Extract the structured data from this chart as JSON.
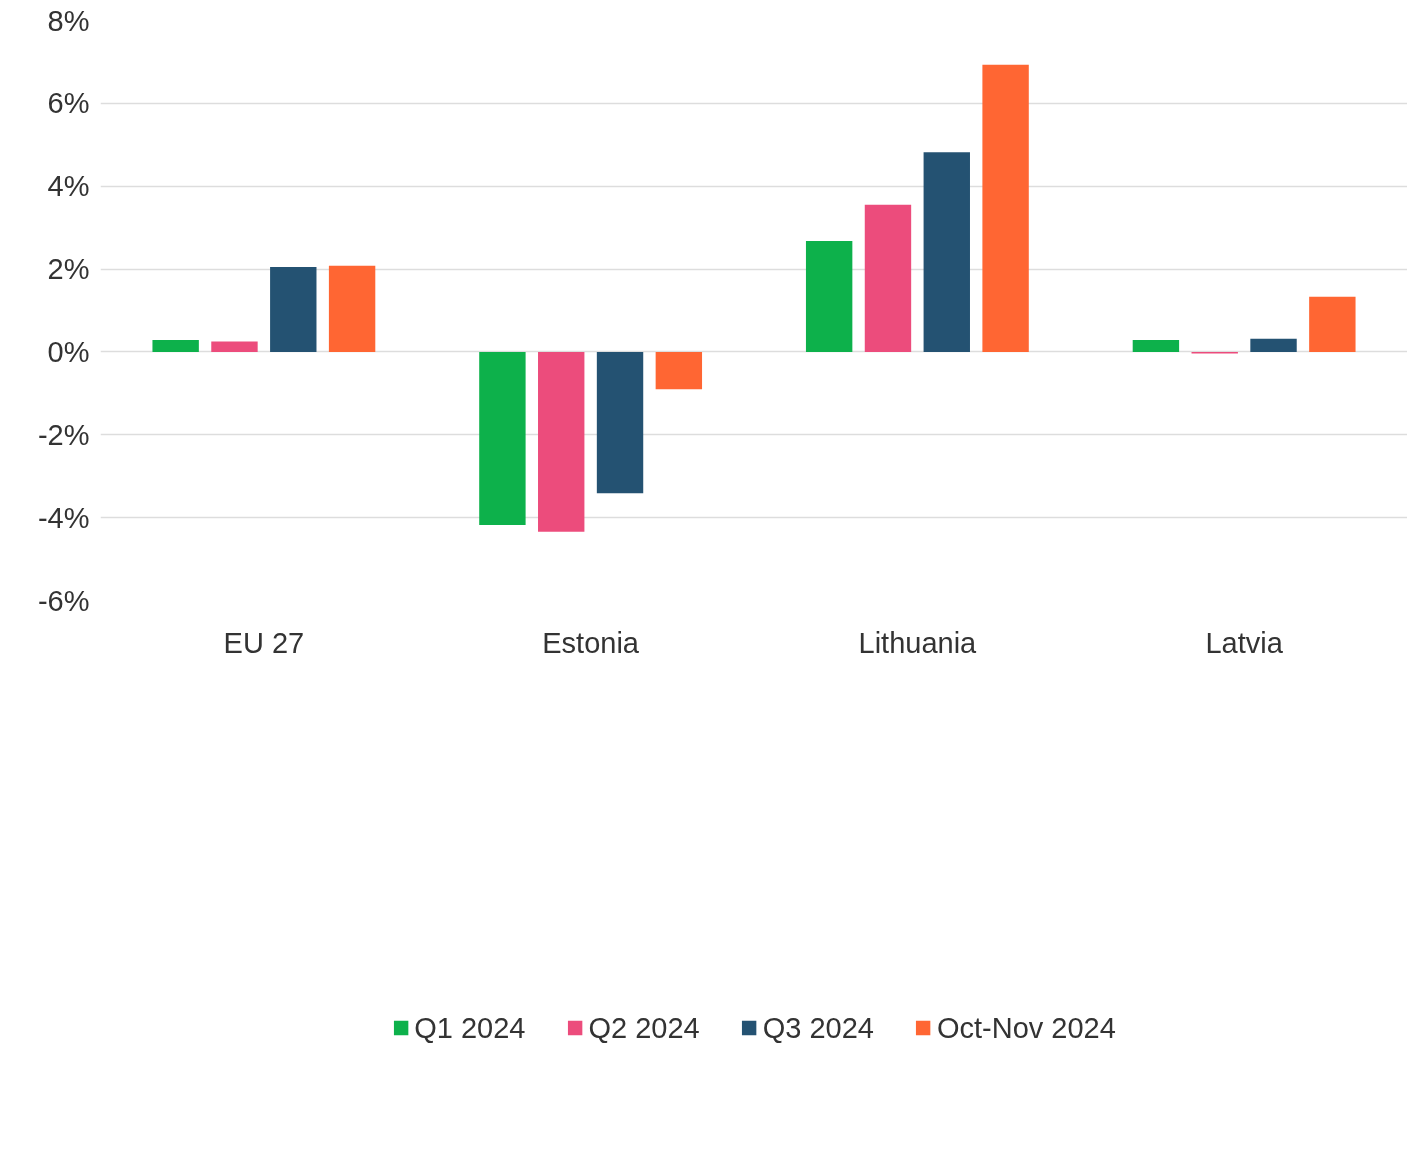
{
  "chart_data": {
    "type": "bar",
    "categories": [
      "EU 27",
      "Estonia",
      "Lithuania",
      "Latvia"
    ],
    "series": [
      {
        "name": "Q1 2024",
        "color": "#0db14b",
        "values": [
          0.29,
          -4.18,
          2.68,
          0.29
        ]
      },
      {
        "name": "Q2 2024",
        "color": "#ec4c7c",
        "values": [
          0.25,
          -4.34,
          3.55,
          -0.04
        ]
      },
      {
        "name": "Q3 2024",
        "color": "#245272",
        "values": [
          2.05,
          -3.41,
          4.82,
          0.32
        ]
      },
      {
        "name": "Oct-Nov 2024",
        "color": "#ff6633",
        "values": [
          2.08,
          -0.9,
          6.93,
          1.33
        ]
      }
    ],
    "ylim": [
      -6,
      8
    ],
    "yticks": [
      {
        "value": -6,
        "label": "-6%"
      },
      {
        "value": -4,
        "label": "-4%"
      },
      {
        "value": -2,
        "label": "-2%"
      },
      {
        "value": 0,
        "label": "0%"
      },
      {
        "value": 2,
        "label": "2%"
      },
      {
        "value": 4,
        "label": "4%"
      },
      {
        "value": 6,
        "label": "6%"
      },
      {
        "value": 8,
        "label": "8%"
      }
    ],
    "grid": "y",
    "legend": "bottom"
  }
}
